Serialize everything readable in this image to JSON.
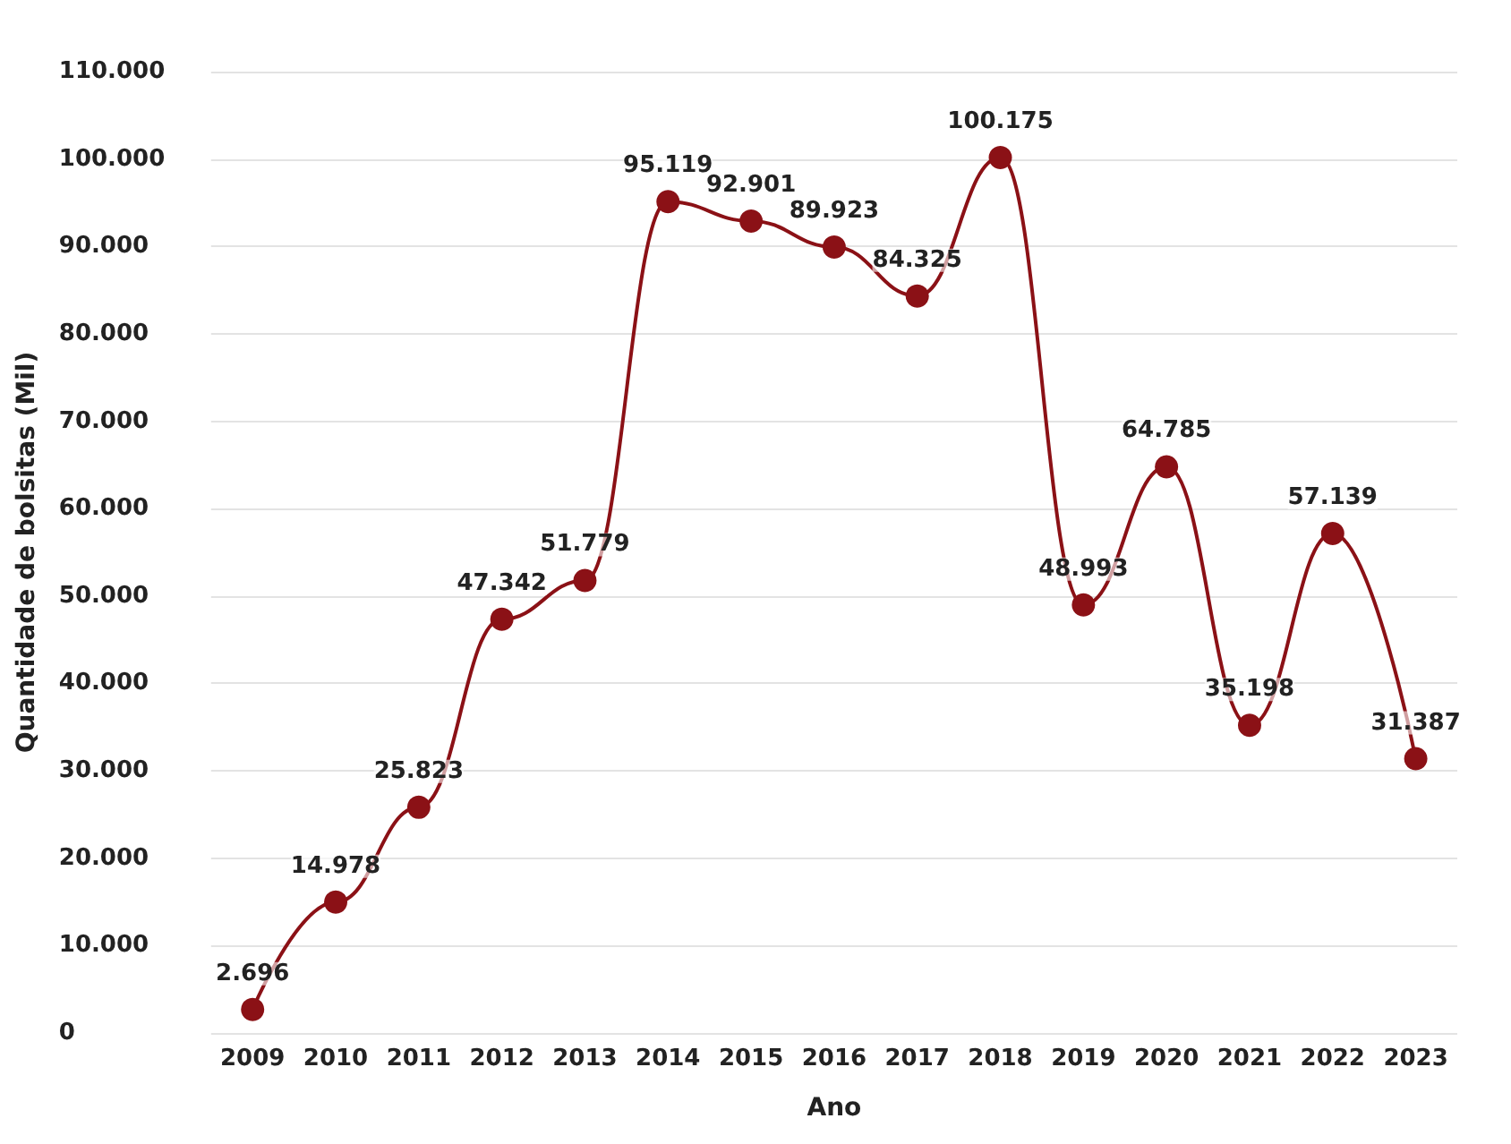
{
  "chart_data": {
    "type": "line",
    "xlabel": "Ano",
    "ylabel": "Quantidade de bolsitas (Mil)",
    "categories": [
      "2009",
      "2010",
      "2011",
      "2012",
      "2013",
      "2014",
      "2015",
      "2016",
      "2017",
      "2018",
      "2019",
      "2020",
      "2021",
      "2022",
      "2023"
    ],
    "series": [
      {
        "color": "#8b1116",
        "values": [
          2696,
          14978,
          25823,
          47342,
          51779,
          95119,
          92901,
          89923,
          84325,
          100175,
          48993,
          64785,
          35198,
          57139,
          31387
        ],
        "value_labels": [
          "2.696",
          "14.978",
          "25.823",
          "47.342",
          "51.779",
          "95.119",
          "92.901",
          "89.923",
          "84.325",
          "100.175",
          "48.993",
          "64.785",
          "35.198",
          "57.139",
          "31.387"
        ]
      }
    ],
    "ylim": [
      0,
      110000
    ],
    "yticks": [
      {
        "value": 0,
        "label": "0"
      },
      {
        "value": 10000,
        "label": "10.000"
      },
      {
        "value": 20000,
        "label": "20.000"
      },
      {
        "value": 30000,
        "label": "30.000"
      },
      {
        "value": 40000,
        "label": "40.000"
      },
      {
        "value": 50000,
        "label": "50.000"
      },
      {
        "value": 60000,
        "label": "60.000"
      },
      {
        "value": 70000,
        "label": "70.000"
      },
      {
        "value": 80000,
        "label": "80.000"
      },
      {
        "value": 90000,
        "label": "90.000"
      },
      {
        "value": 100000,
        "label": "100.000"
      },
      {
        "value": 110000,
        "label": "110.000"
      }
    ],
    "grid": "y",
    "marker": "circle",
    "line_style": "solid"
  }
}
